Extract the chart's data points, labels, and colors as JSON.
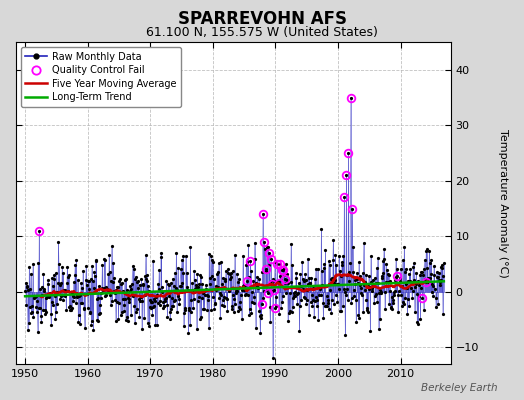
{
  "title": "SPARREVOHN AFS",
  "subtitle": "61.100 N, 155.575 W (United States)",
  "ylabel_right": "Temperature Anomaly (°C)",
  "watermark": "Berkeley Earth",
  "xlim": [
    1948.5,
    2018.0
  ],
  "ylim": [
    -13,
    45
  ],
  "yticks": [
    -10,
    0,
    10,
    20,
    30,
    40
  ],
  "xticks": [
    1950,
    1960,
    1970,
    1980,
    1990,
    2000,
    2010
  ],
  "bg_color": "#d8d8d8",
  "plot_bg": "#ffffff",
  "raw_line_color": "#0000dd",
  "raw_dot_color": "#000000",
  "qc_color": "#ff00ff",
  "ma_color": "#cc0000",
  "trend_color": "#00aa00",
  "title_fontsize": 12,
  "subtitle_fontsize": 9,
  "tick_labelsize": 8,
  "ylabel_fontsize": 8
}
